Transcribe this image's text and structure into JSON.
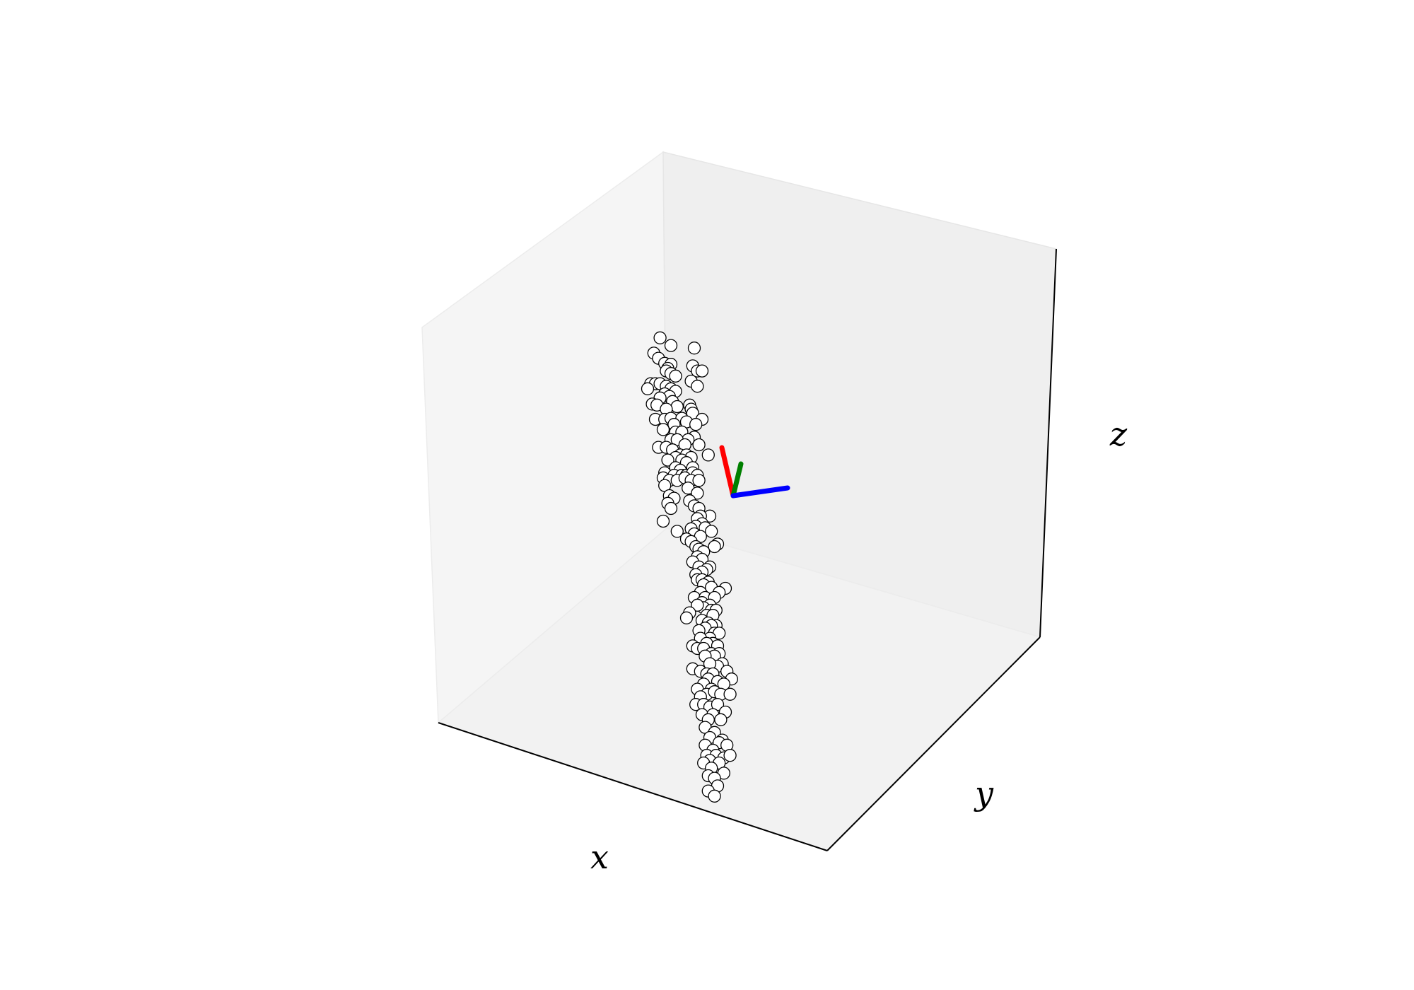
{
  "chart_data": {
    "type": "scatter",
    "projection": "3d",
    "title": "",
    "xlabel": "x",
    "ylabel": "y",
    "zlabel": "z",
    "ticks": "hidden",
    "grid": false,
    "marker": {
      "face": "#ffffff",
      "edge": "#000000",
      "shape": "circle"
    },
    "vectors": [
      {
        "color": "#ff0000",
        "name": ""
      },
      {
        "color": "#008000",
        "name": ""
      },
      {
        "color": "#0000ff",
        "name": ""
      }
    ],
    "series": [
      {
        "name": "",
        "points_xz_view": [
          [
            -0.47,
            0.31
          ],
          [
            -0.4,
            0.295
          ],
          [
            -0.25,
            0.29
          ],
          [
            -0.51,
            0.28
          ],
          [
            -0.48,
            0.27
          ],
          [
            -0.44,
            0.26
          ],
          [
            -0.4,
            0.258
          ],
          [
            -0.42,
            0.25
          ],
          [
            -0.26,
            0.255
          ],
          [
            -0.23,
            0.245
          ],
          [
            -0.2,
            0.245
          ],
          [
            -0.43,
            0.245
          ],
          [
            -0.4,
            0.24
          ],
          [
            -0.37,
            0.235
          ],
          [
            -0.27,
            0.225
          ],
          [
            -0.23,
            0.215
          ],
          [
            -0.53,
            0.22
          ],
          [
            -0.5,
            0.22
          ],
          [
            -0.47,
            0.22
          ],
          [
            -0.43,
            0.215
          ],
          [
            -0.4,
            0.21
          ],
          [
            -0.55,
            0.21
          ],
          [
            -0.37,
            0.205
          ],
          [
            -0.44,
            0.2
          ],
          [
            -0.41,
            0.195
          ],
          [
            -0.47,
            0.192
          ],
          [
            -0.39,
            0.185
          ],
          [
            -0.52,
            0.18
          ],
          [
            -0.49,
            0.178
          ],
          [
            -0.36,
            0.175
          ],
          [
            -0.28,
            0.178
          ],
          [
            -0.27,
            0.17
          ],
          [
            -0.43,
            0.17
          ],
          [
            -0.26,
            0.162
          ],
          [
            -0.5,
            0.15
          ],
          [
            -0.44,
            0.15
          ],
          [
            -0.4,
            0.152
          ],
          [
            -0.33,
            0.152
          ],
          [
            -0.3,
            0.145
          ],
          [
            -0.38,
            0.14
          ],
          [
            -0.2,
            0.15
          ],
          [
            -0.24,
            0.14
          ],
          [
            -0.45,
            0.13
          ],
          [
            -0.37,
            0.125
          ],
          [
            -0.33,
            0.125
          ],
          [
            -0.25,
            0.115
          ],
          [
            -0.29,
            0.11
          ],
          [
            -0.4,
            0.11
          ],
          [
            -0.36,
            0.11
          ],
          [
            -0.31,
            0.1
          ],
          [
            -0.22,
            0.1
          ],
          [
            -0.48,
            0.095
          ],
          [
            -0.43,
            0.095
          ],
          [
            -0.39,
            0.09
          ],
          [
            -0.34,
            0.08
          ],
          [
            -0.3,
            0.08
          ],
          [
            -0.37,
            0.075
          ],
          [
            -0.27,
            0.075
          ],
          [
            -0.16,
            0.08
          ],
          [
            -0.42,
            0.07
          ],
          [
            -0.33,
            0.07
          ],
          [
            -0.3,
            0.065
          ],
          [
            -0.26,
            0.055
          ],
          [
            -0.37,
            0.055
          ],
          [
            -0.34,
            0.05
          ],
          [
            -0.44,
            0.045
          ],
          [
            -0.38,
            0.04
          ],
          [
            -0.33,
            0.04
          ],
          [
            -0.3,
            0.04
          ],
          [
            -0.26,
            0.045
          ],
          [
            -0.23,
            0.04
          ],
          [
            -0.45,
            0.035
          ],
          [
            -0.41,
            0.03
          ],
          [
            -0.36,
            0.03
          ],
          [
            -0.31,
            0.035
          ],
          [
            -0.27,
            0.03
          ],
          [
            -0.22,
            0.03
          ],
          [
            -0.44,
            0.02
          ],
          [
            -0.29,
            0.015
          ],
          [
            -0.23,
            0.005
          ],
          [
            -0.41,
            0.0
          ],
          [
            -0.38,
            -0.005
          ],
          [
            -0.28,
            -0.01
          ],
          [
            -0.42,
            -0.015
          ],
          [
            -0.25,
            -0.02
          ],
          [
            -0.22,
            -0.025
          ],
          [
            -0.4,
            -0.025
          ],
          [
            -0.15,
            -0.04
          ],
          [
            -0.21,
            -0.04
          ],
          [
            -0.23,
            -0.045
          ],
          [
            -0.45,
            -0.05
          ],
          [
            -0.2,
            -0.055
          ],
          [
            -0.24,
            -0.06
          ],
          [
            -0.18,
            -0.063
          ],
          [
            -0.27,
            -0.065
          ],
          [
            -0.14,
            -0.07
          ],
          [
            -0.36,
            -0.07
          ],
          [
            -0.25,
            -0.075
          ],
          [
            -0.21,
            -0.08
          ],
          [
            -0.3,
            -0.085
          ],
          [
            -0.27,
            -0.09
          ],
          [
            -0.1,
            -0.095
          ],
          [
            -0.24,
            -0.1
          ],
          [
            -0.22,
            -0.105
          ],
          [
            -0.12,
            -0.1
          ],
          [
            -0.19,
            -0.11
          ],
          [
            -0.23,
            -0.12
          ],
          [
            -0.2,
            -0.125
          ],
          [
            -0.26,
            -0.13
          ],
          [
            -0.22,
            -0.14
          ],
          [
            -0.15,
            -0.14
          ],
          [
            -0.17,
            -0.145
          ],
          [
            -0.2,
            -0.15
          ],
          [
            -0.24,
            -0.155
          ],
          [
            -0.23,
            -0.165
          ],
          [
            -0.2,
            -0.165
          ],
          [
            -0.16,
            -0.17
          ],
          [
            -0.19,
            -0.175
          ],
          [
            -0.14,
            -0.18
          ],
          [
            -0.05,
            -0.182
          ],
          [
            -0.09,
            -0.19
          ],
          [
            -0.21,
            -0.19
          ],
          [
            -0.25,
            -0.2
          ],
          [
            -0.18,
            -0.2
          ],
          [
            -0.12,
            -0.2
          ],
          [
            -0.2,
            -0.21
          ],
          [
            -0.15,
            -0.215
          ],
          [
            -0.19,
            -0.22
          ],
          [
            -0.23,
            -0.215
          ],
          [
            -0.14,
            -0.225
          ],
          [
            -0.11,
            -0.225
          ],
          [
            -0.17,
            -0.235
          ],
          [
            -0.13,
            -0.235
          ],
          [
            -0.28,
            -0.23
          ],
          [
            -0.3,
            -0.24
          ],
          [
            -0.2,
            -0.245
          ],
          [
            -0.16,
            -0.25
          ],
          [
            -0.11,
            -0.255
          ],
          [
            -0.14,
            -0.255
          ],
          [
            -0.18,
            -0.26
          ],
          [
            -0.22,
            -0.265
          ],
          [
            -0.12,
            -0.27
          ],
          [
            -0.09,
            -0.27
          ],
          [
            -0.15,
            -0.28
          ],
          [
            -0.21,
            -0.28
          ],
          [
            -0.13,
            -0.29
          ],
          [
            -0.17,
            -0.29
          ],
          [
            -0.1,
            -0.295
          ],
          [
            -0.26,
            -0.295
          ],
          [
            -0.23,
            -0.3
          ],
          [
            -0.19,
            -0.3
          ],
          [
            -0.14,
            -0.31
          ],
          [
            -0.09,
            -0.31
          ],
          [
            -0.12,
            -0.315
          ],
          [
            -0.18,
            -0.315
          ],
          [
            -0.07,
            -0.33
          ],
          [
            -0.1,
            -0.335
          ],
          [
            -0.15,
            -0.33
          ],
          [
            -0.26,
            -0.34
          ],
          [
            -0.21,
            -0.345
          ],
          [
            -0.17,
            -0.35
          ],
          [
            -0.13,
            -0.35
          ],
          [
            -0.04,
            -0.345
          ],
          [
            -0.16,
            -0.36
          ],
          [
            -0.01,
            -0.36
          ],
          [
            -0.1,
            -0.365
          ],
          [
            -0.06,
            -0.37
          ],
          [
            -0.19,
            -0.37
          ],
          [
            -0.14,
            -0.38
          ],
          [
            -0.23,
            -0.38
          ],
          [
            -0.17,
            -0.39
          ],
          [
            -0.12,
            -0.385
          ],
          [
            -0.08,
            -0.39
          ],
          [
            -0.02,
            -0.39
          ],
          [
            -0.21,
            -0.395
          ],
          [
            -0.24,
            -0.41
          ],
          [
            -0.19,
            -0.41
          ],
          [
            -0.15,
            -0.415
          ],
          [
            -0.1,
            -0.41
          ],
          [
            -0.05,
            -0.425
          ],
          [
            -0.2,
            -0.43
          ],
          [
            -0.13,
            -0.43
          ],
          [
            -0.16,
            -0.44
          ],
          [
            -0.08,
            -0.44
          ],
          [
            -0.18,
            -0.455
          ],
          [
            -0.12,
            -0.465
          ],
          [
            -0.15,
            -0.475
          ],
          [
            -0.07,
            -0.48
          ],
          [
            -0.09,
            -0.485
          ],
          [
            -0.04,
            -0.49
          ],
          [
            -0.18,
            -0.49
          ],
          [
            -0.13,
            -0.5
          ],
          [
            -0.17,
            -0.51
          ],
          [
            -0.11,
            -0.51
          ],
          [
            -0.06,
            -0.515
          ],
          [
            -0.02,
            -0.51
          ],
          [
            -0.15,
            -0.52
          ],
          [
            -0.19,
            -0.525
          ],
          [
            -0.09,
            -0.525
          ],
          [
            -0.14,
            -0.535
          ],
          [
            -0.06,
            -0.545
          ],
          [
            -0.16,
            -0.55
          ],
          [
            -0.12,
            -0.555
          ],
          [
            -0.1,
            -0.57
          ],
          [
            -0.16,
            -0.58
          ],
          [
            -0.12,
            -0.59
          ]
        ]
      }
    ]
  }
}
